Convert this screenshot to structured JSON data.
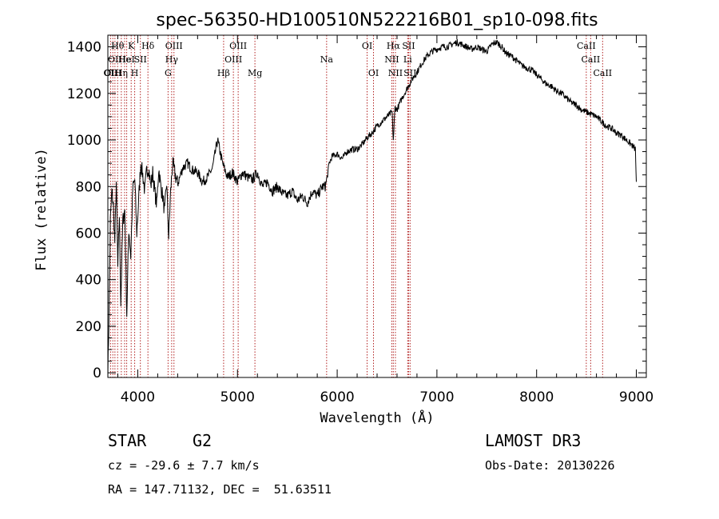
{
  "chart_data": {
    "type": "line",
    "title": "spec-56350-HD100510N522216B01_sp10-098.fits",
    "xlabel": "Wavelength (Å)",
    "ylabel": "Flux (relative)",
    "xlim": [
      3700,
      9100
    ],
    "ylim": [
      -20,
      1450
    ],
    "x_ticks": [
      4000,
      5000,
      6000,
      7000,
      8000,
      9000
    ],
    "y_ticks": [
      0,
      200,
      400,
      600,
      800,
      1000,
      1200,
      1400
    ],
    "series": [
      {
        "name": "flux",
        "x": [
          3700,
          3710,
          3725,
          3740,
          3755,
          3770,
          3785,
          3800,
          3815,
          3830,
          3850,
          3870,
          3890,
          3910,
          3930,
          3950,
          3970,
          3990,
          4010,
          4030,
          4050,
          4070,
          4090,
          4110,
          4130,
          4150,
          4170,
          4190,
          4210,
          4230,
          4250,
          4270,
          4290,
          4310,
          4330,
          4350,
          4370,
          4400,
          4450,
          4500,
          4550,
          4600,
          4650,
          4700,
          4750,
          4800,
          4850,
          4900,
          4950,
          5000,
          5050,
          5100,
          5150,
          5200,
          5250,
          5300,
          5350,
          5400,
          5450,
          5500,
          5550,
          5600,
          5650,
          5700,
          5750,
          5800,
          5850,
          5880,
          5900,
          5920,
          5950,
          6000,
          6050,
          6100,
          6150,
          6200,
          6250,
          6300,
          6350,
          6400,
          6450,
          6500,
          6550,
          6563,
          6580,
          6600,
          6650,
          6700,
          6750,
          6800,
          6850,
          6900,
          6950,
          7000,
          7050,
          7100,
          7150,
          7200,
          7250,
          7300,
          7350,
          7400,
          7450,
          7500,
          7550,
          7600,
          7650,
          7700,
          7750,
          7800,
          7850,
          7900,
          7950,
          8000,
          8050,
          8100,
          8150,
          8200,
          8250,
          8300,
          8350,
          8400,
          8450,
          8500,
          8550,
          8600,
          8650,
          8700,
          8750,
          8800,
          8850,
          8900,
          8950,
          8990,
          9000
        ],
        "values": [
          0,
          200,
          650,
          780,
          720,
          560,
          820,
          450,
          680,
          300,
          650,
          700,
          250,
          620,
          500,
          790,
          830,
          600,
          750,
          900,
          850,
          780,
          870,
          880,
          800,
          860,
          780,
          720,
          880,
          800,
          760,
          690,
          820,
          580,
          780,
          900,
          860,
          810,
          880,
          900,
          870,
          860,
          820,
          840,
          880,
          1000,
          900,
          840,
          860,
          820,
          860,
          840,
          830,
          860,
          800,
          820,
          780,
          800,
          770,
          760,
          780,
          740,
          760,
          730,
          780,
          760,
          800,
          800,
          840,
          900,
          930,
          940,
          920,
          950,
          960,
          960,
          980,
          1010,
          1030,
          1060,
          1080,
          1100,
          1120,
          1000,
          1140,
          1130,
          1180,
          1220,
          1260,
          1290,
          1330,
          1360,
          1380,
          1390,
          1400,
          1400,
          1410,
          1420,
          1410,
          1400,
          1390,
          1400,
          1390,
          1380,
          1410,
          1420,
          1400,
          1370,
          1360,
          1340,
          1320,
          1310,
          1300,
          1280,
          1260,
          1240,
          1230,
          1210,
          1200,
          1180,
          1160,
          1150,
          1130,
          1120,
          1110,
          1100,
          1080,
          1060,
          1050,
          1030,
          1020,
          1000,
          980,
          960,
          820
        ]
      }
    ],
    "line_markers": [
      {
        "wl": 3727,
        "row": 2,
        "label": "OII"
      },
      {
        "wl": 3750,
        "row": 2,
        "label": "OIII"
      },
      {
        "wl": 3771,
        "row": 1,
        "label": "OII"
      },
      {
        "wl": 3798,
        "row": 0,
        "label": "Hθ"
      },
      {
        "wl": 3835,
        "row": 2,
        "label": "Hη"
      },
      {
        "wl": 3868,
        "row": 1,
        "label": "He"
      },
      {
        "wl": 3889,
        "row": 1,
        "label": "HeI"
      },
      {
        "wl": 3934,
        "row": 0,
        "label": "K"
      },
      {
        "wl": 3969,
        "row": 2,
        "label": "H"
      },
      {
        "wl": 4026,
        "row": 1,
        "label": "SII"
      },
      {
        "wl": 4102,
        "row": 0,
        "label": "Hδ"
      },
      {
        "wl": 4304,
        "row": 2,
        "label": "G"
      },
      {
        "wl": 4340,
        "row": 1,
        "label": "Hγ"
      },
      {
        "wl": 4363,
        "row": 0,
        "label": "OIII"
      },
      {
        "wl": 4861,
        "row": 2,
        "label": "Hβ"
      },
      {
        "wl": 4959,
        "row": 1,
        "label": "OIII"
      },
      {
        "wl": 5007,
        "row": 0,
        "label": "OIII"
      },
      {
        "wl": 5175,
        "row": 2,
        "label": "Mg"
      },
      {
        "wl": 5894,
        "row": 1,
        "label": "Na"
      },
      {
        "wl": 6300,
        "row": 0,
        "label": "OI"
      },
      {
        "wl": 6364,
        "row": 2,
        "label": "OI"
      },
      {
        "wl": 6548,
        "row": 1,
        "label": "NII"
      },
      {
        "wl": 6563,
        "row": 0,
        "label": "Hα"
      },
      {
        "wl": 6584,
        "row": 2,
        "label": "NII"
      },
      {
        "wl": 6707,
        "row": 1,
        "label": "Li"
      },
      {
        "wl": 6716,
        "row": 0,
        "label": "SII"
      },
      {
        "wl": 6731,
        "row": 2,
        "label": "SII"
      },
      {
        "wl": 8498,
        "row": 0,
        "label": "CaII"
      },
      {
        "wl": 8542,
        "row": 1,
        "label": "CaII"
      },
      {
        "wl": 8662,
        "row": 2,
        "label": "CaII"
      }
    ]
  },
  "info": {
    "object_class": "STAR",
    "subclass": "G2",
    "redshift_text": "cz = -29.6 ± 7.7 km/s",
    "coords_text": "RA = 147.71132, DEC =  51.63511",
    "survey": "LAMOST DR3",
    "obs_date_text": "Obs-Date: 20130226"
  },
  "colors": {
    "spectrum": "#000000",
    "marker": "#b22222",
    "axis": "#000000"
  }
}
